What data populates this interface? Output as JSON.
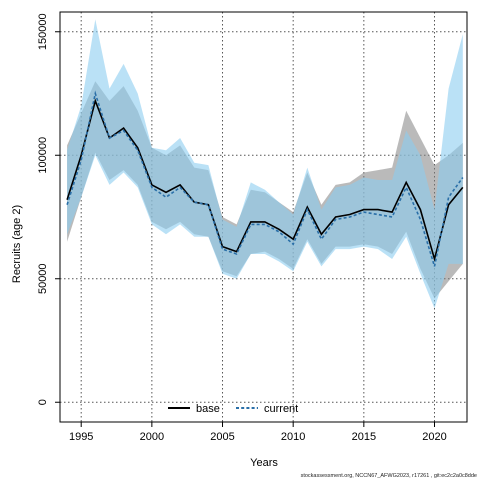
{
  "chart_data": {
    "type": "line",
    "title": "",
    "xlabel": "Years",
    "ylabel": "Recruits (age 2)",
    "xlim": [
      1993.5,
      2022.3
    ],
    "ylim": [
      -8000,
      158000
    ],
    "x_ticks": [
      1995,
      2000,
      2005,
      2010,
      2015,
      2020
    ],
    "x_tick_labels": [
      "1995",
      "2000",
      "2005",
      "2010",
      "2015",
      "2020"
    ],
    "y_ticks": [
      0,
      50000,
      100000,
      150000
    ],
    "y_tick_labels": [
      "0",
      "50000",
      "100000",
      "150000"
    ],
    "grid": true,
    "legend_position": "bottom-center",
    "x": [
      1994,
      1995,
      1996,
      1997,
      1998,
      1999,
      2000,
      2001,
      2002,
      2003,
      2004,
      2005,
      2006,
      2007,
      2008,
      2009,
      2010,
      2011,
      2012,
      2013,
      2014,
      2015,
      2016,
      2017,
      2018,
      2019,
      2020,
      2021,
      2022
    ],
    "series": [
      {
        "name": "base",
        "color": "#000000",
        "line_style": "solid",
        "band_color": "rgba(130,130,130,0.55)",
        "values": [
          82000,
          100000,
          122000,
          107000,
          111000,
          103000,
          88000,
          85000,
          88000,
          81000,
          80000,
          63000,
          61000,
          73000,
          73000,
          70000,
          66000,
          79000,
          68000,
          75000,
          76000,
          78000,
          78000,
          77000,
          89000,
          78000,
          58000,
          80000,
          87000
        ],
        "upper": [
          104000,
          117000,
          130000,
          122000,
          128000,
          118000,
          103000,
          100000,
          104000,
          95000,
          94000,
          75000,
          72000,
          86000,
          85000,
          81000,
          77000,
          93000,
          80000,
          88000,
          89000,
          93000,
          94000,
          95000,
          118000,
          107000,
          96000,
          100000,
          105000
        ],
        "lower": [
          65000,
          83000,
          101000,
          90000,
          94000,
          88000,
          73000,
          70000,
          73000,
          68000,
          67000,
          53000,
          51000,
          60000,
          61000,
          58000,
          54000,
          66000,
          56000,
          63000,
          63000,
          64000,
          63000,
          60000,
          69000,
          54000,
          42000,
          49000,
          56000
        ]
      },
      {
        "name": "current",
        "color": "#2a6fa8",
        "line_style": "dashed",
        "band_color": "rgba(140,205,240,0.6)",
        "values": [
          80000,
          98000,
          125000,
          107000,
          110000,
          102000,
          87000,
          83000,
          87000,
          81000,
          80000,
          62000,
          60000,
          72000,
          72000,
          69000,
          64000,
          78000,
          66000,
          74000,
          75000,
          77000,
          76000,
          75000,
          87000,
          74000,
          55000,
          83000,
          91000
        ],
        "upper": [
          102000,
          120000,
          155000,
          127000,
          137000,
          125000,
          103000,
          102000,
          107000,
          97000,
          96000,
          74000,
          71000,
          89000,
          86000,
          81000,
          76000,
          95000,
          78000,
          87000,
          88000,
          91000,
          90000,
          90000,
          110000,
          100000,
          78000,
          127000,
          149000
        ],
        "lower": [
          68000,
          83000,
          100000,
          88000,
          93000,
          87000,
          72000,
          68000,
          72000,
          67000,
          67000,
          52000,
          50000,
          60000,
          60000,
          57000,
          53000,
          65000,
          55000,
          62000,
          62000,
          63000,
          62000,
          58000,
          67000,
          52000,
          38000,
          56000,
          56000
        ]
      }
    ]
  },
  "footer": {
    "source_text": "stockassessment.org, NCCN67_AFWG2023, r17261 , git:ec2c2a0c8dde"
  }
}
